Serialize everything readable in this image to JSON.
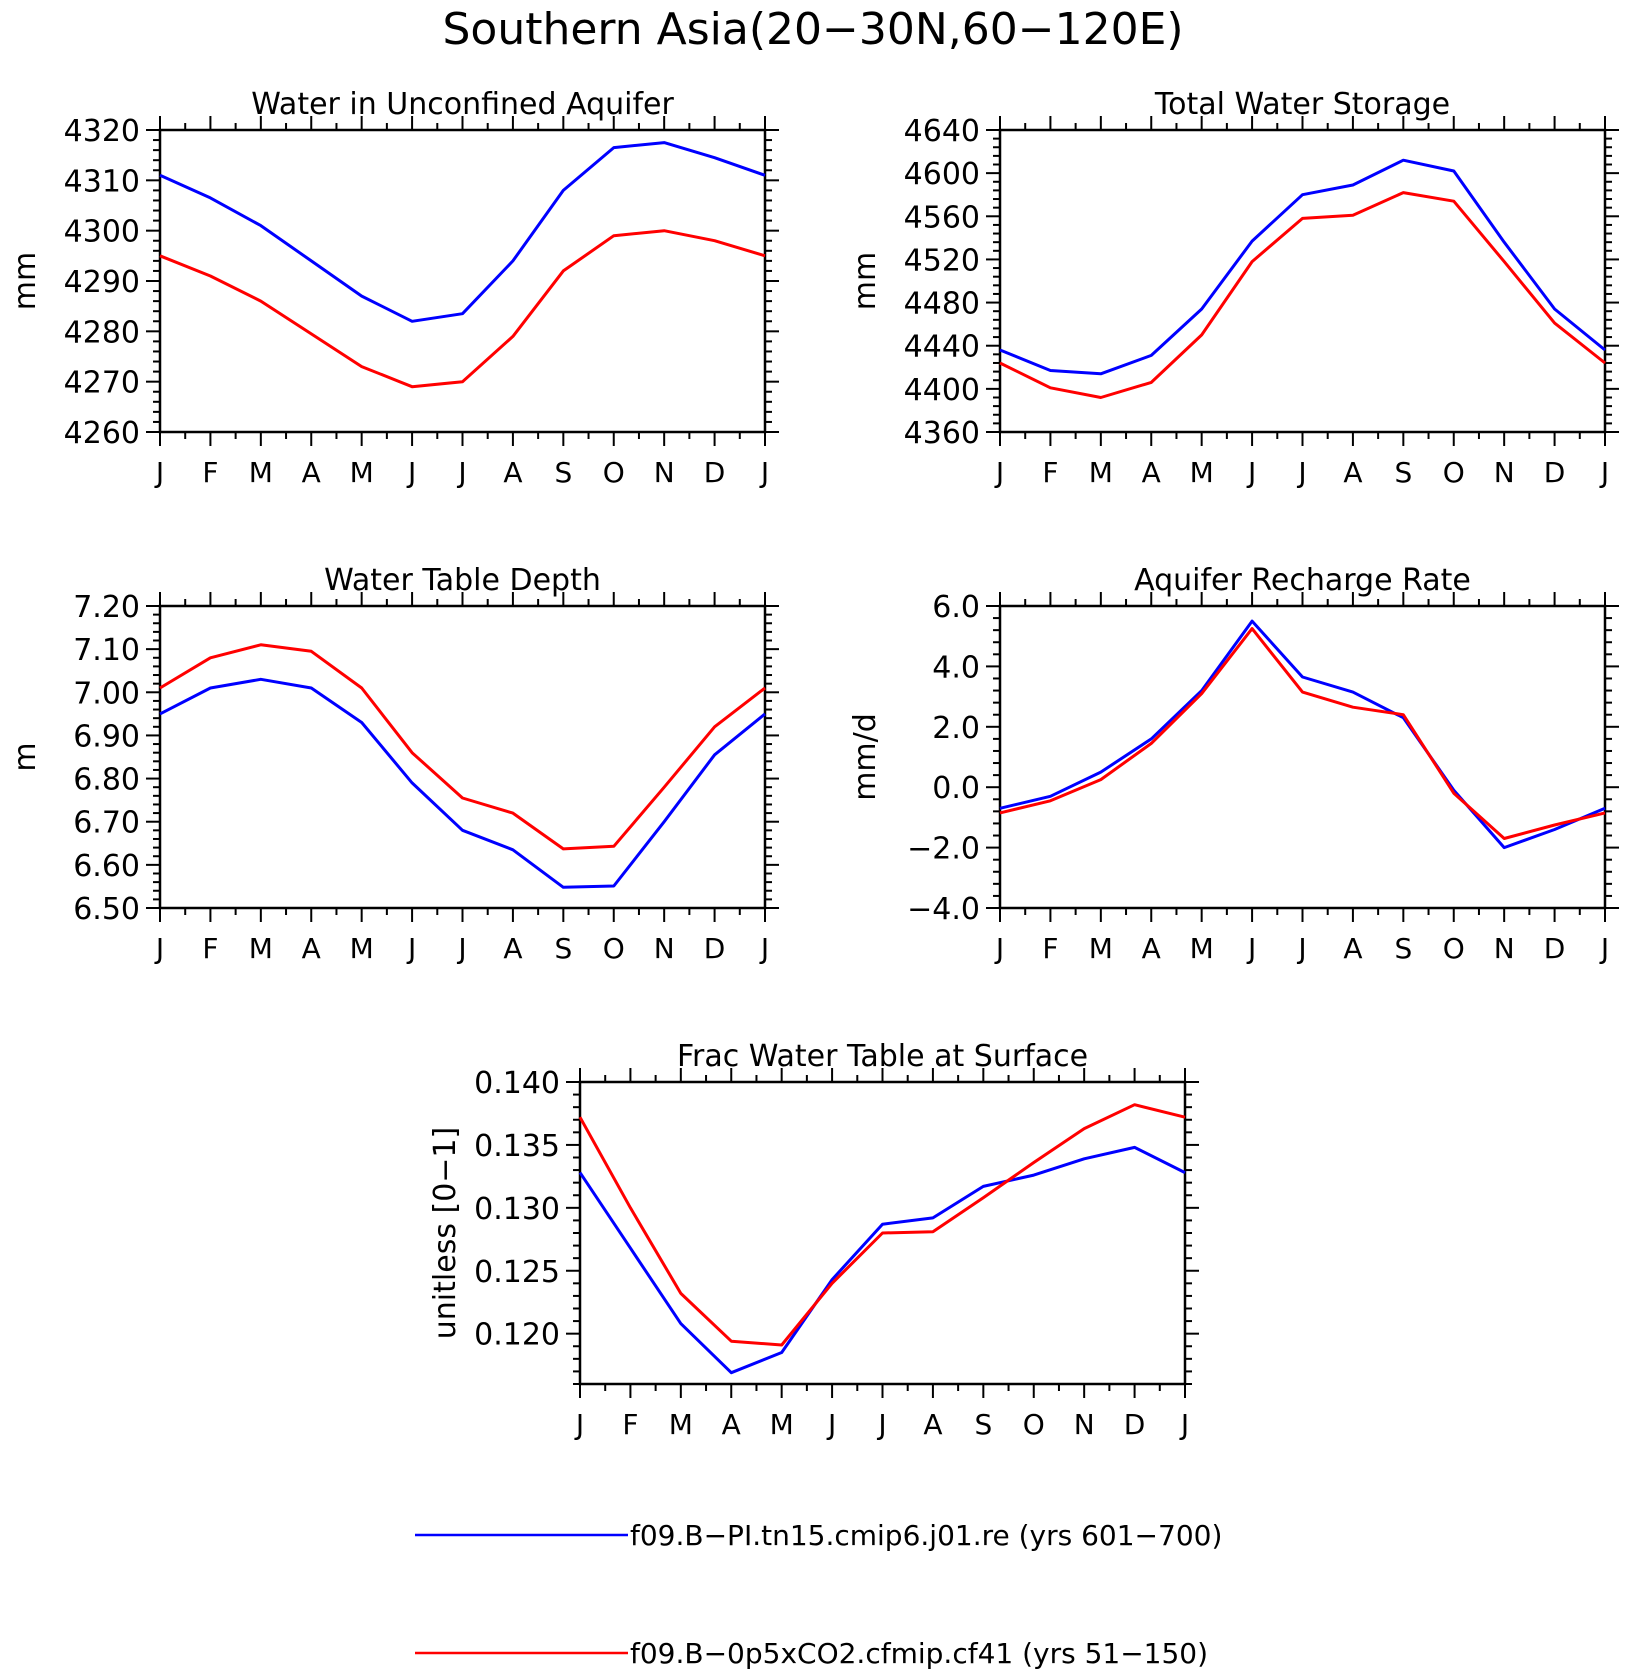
{
  "figure": {
    "title": "Southern Asia(20−30N,60−120E)",
    "month_ticks": [
      "J",
      "F",
      "M",
      "A",
      "M",
      "J",
      "J",
      "A",
      "S",
      "O",
      "N",
      "D",
      "J"
    ]
  },
  "legend": {
    "entries": [
      {
        "label": "f09.B−PI.tn15.cmip6.j01.re (yrs 601−700)",
        "color": "#0000ff"
      },
      {
        "label": "f09.B−0p5xCO2.cfmip.cf41 (yrs 51−150)",
        "color": "#ff0000"
      }
    ]
  },
  "chart_data": [
    {
      "type": "line",
      "title": "Water in Unconfined Aquifer",
      "ylabel": "mm",
      "ylim": [
        4260,
        4320
      ],
      "yticks": [
        4260,
        4270,
        4280,
        4290,
        4300,
        4310,
        4320
      ],
      "ytick_labels": [
        "4260",
        "4270",
        "4280",
        "4290",
        "4300",
        "4310",
        "4320"
      ],
      "series": [
        {
          "color": "#0000ff",
          "values": [
            4311,
            4306.5,
            4301,
            4294,
            4287,
            4282,
            4283.5,
            4294,
            4308,
            4316.5,
            4317.5,
            4314.5,
            4311
          ]
        },
        {
          "color": "#ff0000",
          "values": [
            4295,
            4291,
            4286,
            4279.5,
            4273,
            4269,
            4270,
            4279,
            4292,
            4299,
            4300,
            4298,
            4295
          ]
        }
      ]
    },
    {
      "type": "line",
      "title": "Total Water Storage",
      "ylabel": "mm",
      "ylim": [
        4360,
        4640
      ],
      "yticks": [
        4360,
        4400,
        4440,
        4480,
        4520,
        4560,
        4600,
        4640
      ],
      "ytick_labels": [
        "4360",
        "4400",
        "4440",
        "4480",
        "4520",
        "4560",
        "4600",
        "4640"
      ],
      "series": [
        {
          "color": "#0000ff",
          "values": [
            4436,
            4417,
            4414,
            4431,
            4474,
            4537,
            4580,
            4589,
            4612,
            4602,
            4536,
            4474,
            4436
          ]
        },
        {
          "color": "#ff0000",
          "values": [
            4424,
            4401,
            4392,
            4406,
            4450,
            4518,
            4558,
            4561,
            4582,
            4574,
            4518,
            4461,
            4424
          ]
        }
      ]
    },
    {
      "type": "line",
      "title": "Water Table Depth",
      "ylabel": "m",
      "ylim": [
        6.5,
        7.2
      ],
      "yticks": [
        6.5,
        6.6,
        6.7,
        6.8,
        6.9,
        7.0,
        7.1,
        7.2
      ],
      "ytick_labels": [
        "6.50",
        "6.60",
        "6.70",
        "6.80",
        "6.90",
        "7.00",
        "7.10",
        "7.20"
      ],
      "series": [
        {
          "color": "#0000ff",
          "values": [
            6.95,
            7.01,
            7.03,
            7.01,
            6.93,
            6.79,
            6.68,
            6.635,
            6.548,
            6.551,
            6.7,
            6.855,
            6.95
          ]
        },
        {
          "color": "#ff0000",
          "values": [
            7.01,
            7.08,
            7.11,
            7.095,
            7.01,
            6.86,
            6.755,
            6.72,
            6.637,
            6.643,
            6.78,
            6.92,
            7.01
          ]
        }
      ]
    },
    {
      "type": "line",
      "title": "Aquifer Recharge Rate",
      "ylabel": "mm/d",
      "ylim": [
        -4,
        6
      ],
      "yticks": [
        -4,
        -2,
        0,
        2,
        4,
        6
      ],
      "ytick_labels": [
        "−4.0",
        "−2.0",
        "0.0",
        "2.0",
        "4.0",
        "6.0"
      ],
      "series": [
        {
          "color": "#0000ff",
          "values": [
            -0.7,
            -0.3,
            0.5,
            1.6,
            3.2,
            5.5,
            3.65,
            3.15,
            2.3,
            -0.1,
            -2.0,
            -1.4,
            -0.7
          ]
        },
        {
          "color": "#ff0000",
          "values": [
            -0.85,
            -0.45,
            0.25,
            1.45,
            3.1,
            5.25,
            3.15,
            2.65,
            2.4,
            -0.2,
            -1.7,
            -1.25,
            -0.85
          ]
        }
      ]
    },
    {
      "type": "line",
      "title": "Frac Water Table at Surface",
      "ylabel": "unitless [0−1]",
      "ylim": [
        0.116,
        0.14
      ],
      "yticks": [
        0.12,
        0.125,
        0.13,
        0.135,
        0.14
      ],
      "ytick_labels": [
        "0.120",
        "0.125",
        "0.130",
        "0.135",
        "0.140"
      ],
      "series": [
        {
          "color": "#0000ff",
          "values": [
            0.1328,
            0.1268,
            0.1208,
            0.1169,
            0.1185,
            0.1243,
            0.1287,
            0.1292,
            0.1317,
            0.1326,
            0.1339,
            0.1348,
            0.1328
          ]
        },
        {
          "color": "#ff0000",
          "values": [
            0.1372,
            0.13,
            0.1232,
            0.1194,
            0.1191,
            0.124,
            0.128,
            0.1281,
            0.1308,
            0.1336,
            0.1363,
            0.1382,
            0.1372
          ]
        }
      ]
    }
  ]
}
